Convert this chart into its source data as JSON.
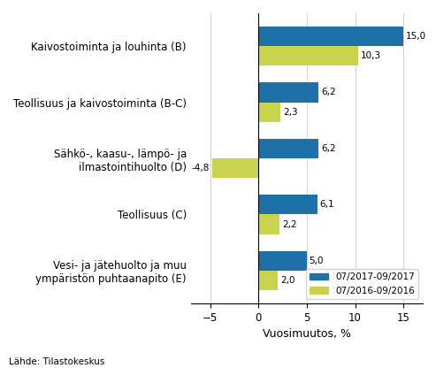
{
  "categories": [
    "Vesi- ja jätehuolto ja muu\nympäristön puhtaanapito (E)",
    "Teollisuus (C)",
    "Sähkö-, kaasu-, lämpö- ja\nilmastointihuolto (D)",
    "Teollisuus ja kaivostoiminta (B-C)",
    "Kaivostoiminta ja louhinta (B)"
  ],
  "values_2017": [
    5.0,
    6.1,
    6.2,
    6.2,
    15.0
  ],
  "values_2016": [
    2.0,
    2.2,
    -4.8,
    2.3,
    10.3
  ],
  "labels_2017": [
    "5,0",
    "6,1",
    "6,2",
    "6,2",
    "15,0"
  ],
  "labels_2016": [
    "2,0",
    "2,2",
    "-4,8",
    "2,3",
    "10,3"
  ],
  "color_2017": "#1f6fa8",
  "color_2016": "#c8d44e",
  "legend_2017": "07/2017-09/2017",
  "legend_2016": "07/2016-09/2016",
  "xlabel": "Vuosimuutos, %",
  "xlim": [
    -7,
    17
  ],
  "xticks": [
    -5,
    0,
    5,
    10,
    15
  ],
  "footer": "Lähde: Tilastokeskus",
  "bar_height": 0.35
}
